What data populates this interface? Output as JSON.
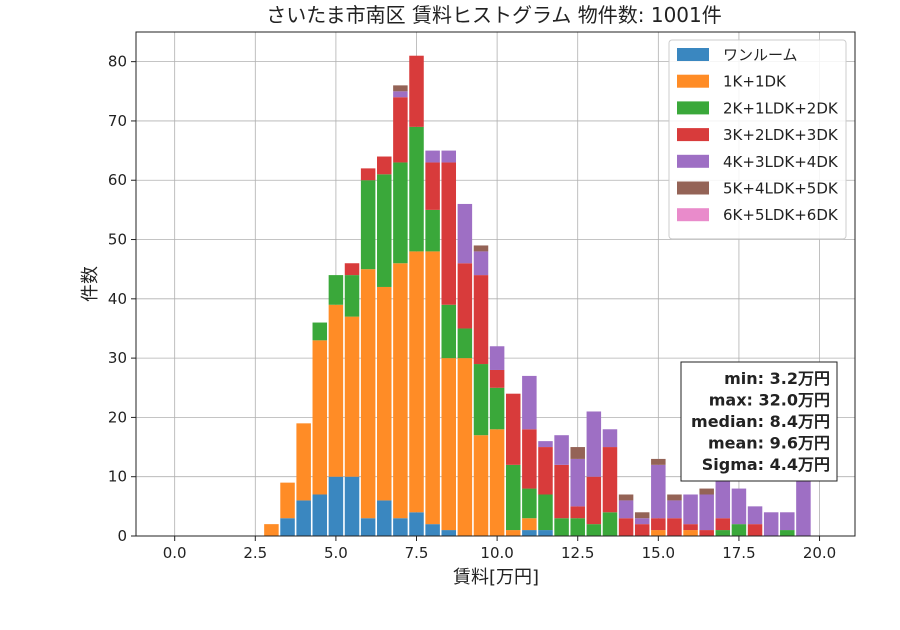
{
  "chart_data": {
    "type": "bar",
    "stacked": true,
    "title": "さいたま市南区 賃料ヒストグラム 物件数: 1001件",
    "xlabel": "賃料[万円]",
    "ylabel": "件数",
    "xlim": [
      -1.2,
      21.1
    ],
    "ylim": [
      0,
      85
    ],
    "xticks": [
      "0.0",
      "2.5",
      "5.0",
      "7.5",
      "10.0",
      "12.5",
      "15.0",
      "17.5",
      "20.0"
    ],
    "xtick_values": [
      0,
      2.5,
      5,
      7.5,
      10,
      12.5,
      15,
      17.5,
      20
    ],
    "yticks": [
      "0",
      "10",
      "20",
      "30",
      "40",
      "50",
      "60",
      "70",
      "80"
    ],
    "ytick_values": [
      0,
      10,
      20,
      30,
      40,
      50,
      60,
      70,
      80
    ],
    "grid": true,
    "legend_position": "top-right",
    "bin_width": 0.5,
    "x": [
      3.0,
      3.5,
      4.0,
      4.5,
      5.0,
      5.5,
      6.0,
      6.5,
      7.0,
      7.5,
      8.0,
      8.5,
      9.0,
      9.5,
      10.0,
      10.5,
      11.0,
      11.5,
      12.0,
      12.5,
      13.0,
      13.5,
      14.0,
      14.5,
      15.0,
      15.5,
      16.0,
      16.5,
      17.0,
      17.5,
      18.0,
      18.5,
      19.0,
      19.5
    ],
    "series": [
      {
        "name": "ワンルーム",
        "color": "#3a87c0",
        "values": [
          0,
          3,
          6,
          7,
          10,
          10,
          3,
          6,
          3,
          4,
          2,
          1,
          0,
          0,
          0,
          0,
          1,
          1,
          0,
          0,
          0,
          0,
          0,
          0,
          0,
          0,
          0,
          0,
          0,
          0,
          0,
          0,
          0,
          0
        ]
      },
      {
        "name": "1K+1DK",
        "color": "#ff8c26",
        "values": [
          2,
          6,
          13,
          26,
          29,
          27,
          42,
          36,
          43,
          44,
          46,
          29,
          30,
          17,
          18,
          1,
          2,
          0,
          0,
          0,
          0,
          0,
          0,
          0,
          1,
          0,
          1,
          0,
          0,
          0,
          0,
          0,
          0,
          0
        ]
      },
      {
        "name": "2K+1LDK+2DK",
        "color": "#3aa83a",
        "values": [
          0,
          0,
          0,
          3,
          5,
          7,
          15,
          19,
          17,
          21,
          7,
          9,
          5,
          12,
          7,
          11,
          5,
          6,
          3,
          3,
          2,
          4,
          0,
          0,
          0,
          0,
          0,
          0,
          1,
          2,
          0,
          0,
          1,
          0
        ]
      },
      {
        "name": "3K+2LDK+3DK",
        "color": "#d83b3b",
        "values": [
          0,
          0,
          0,
          0,
          0,
          2,
          2,
          3,
          11,
          12,
          8,
          24,
          11,
          15,
          3,
          12,
          10,
          8,
          9,
          2,
          8,
          11,
          3,
          2,
          2,
          3,
          1,
          1,
          2,
          0,
          2,
          0,
          0,
          0
        ]
      },
      {
        "name": "4K+3LDK+4DK",
        "color": "#9e6fc4",
        "values": [
          0,
          0,
          0,
          0,
          0,
          0,
          0,
          0,
          1,
          0,
          2,
          2,
          10,
          4,
          4,
          0,
          9,
          1,
          5,
          8,
          11,
          3,
          3,
          1,
          9,
          3,
          5,
          6,
          9,
          6,
          3,
          4,
          3,
          10
        ]
      },
      {
        "name": "5K+4LDK+5DK",
        "color": "#946356",
        "values": [
          0,
          0,
          0,
          0,
          0,
          0,
          0,
          0,
          1,
          0,
          0,
          0,
          0,
          1,
          0,
          0,
          0,
          0,
          0,
          2,
          0,
          0,
          1,
          1,
          1,
          1,
          0,
          1,
          0,
          0,
          0,
          0,
          0,
          0
        ]
      },
      {
        "name": "6K+5LDK+6DK",
        "color": "#e98bcb",
        "values": [
          0,
          0,
          0,
          0,
          0,
          0,
          0,
          0,
          0,
          0,
          0,
          0,
          0,
          0,
          0,
          0,
          0,
          0,
          0,
          0,
          0,
          0,
          0,
          0,
          0,
          0,
          0,
          0,
          0,
          0,
          0,
          0,
          0,
          0
        ]
      }
    ],
    "stats": [
      "min: 3.2万円",
      "max: 32.0万円",
      "median: 8.4万円",
      "mean: 9.6万円",
      "Sigma: 4.4万円"
    ]
  }
}
